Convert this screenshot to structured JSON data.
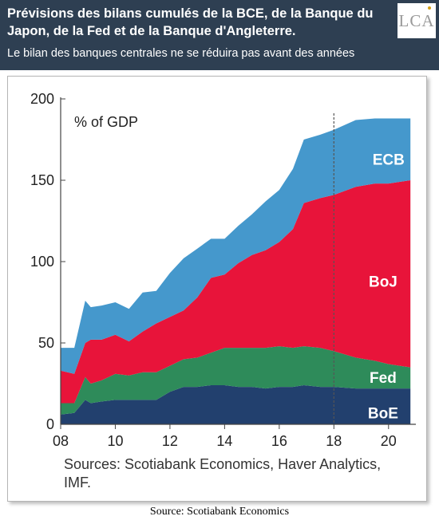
{
  "header": {
    "title": "Prévisions des bilans cumulés de la BCE, de la Banque du Japon, de la Fed et de la Banque d'Angleterre.",
    "subtitle": "Le bilan des banques centrales ne se réduira pas avant des années",
    "logo": "LCA"
  },
  "footer": {
    "source": "Source: Scotiabank Economics"
  },
  "colors": {
    "boe": "#22406e",
    "fed": "#2e8b5a",
    "boj": "#e8143a",
    "ecb": "#4598cc",
    "header_bg": "#2e3f52"
  },
  "chart_data": {
    "type": "area",
    "stacked": true,
    "unit_label": "% of GDP",
    "source_note": "Sources: Scotiabank Economics, Haver Analytics, IMF.",
    "x": [
      2008.0,
      2008.5,
      2008.9,
      2009.1,
      2009.5,
      2010.0,
      2010.5,
      2011.0,
      2011.5,
      2012.0,
      2012.5,
      2013.0,
      2013.5,
      2014.0,
      2014.5,
      2015.0,
      2015.5,
      2016.0,
      2016.5,
      2016.9,
      2017.5,
      2018.0,
      2018.8,
      2019.5,
      2020.0,
      2020.8
    ],
    "xlim": [
      2008,
      2021
    ],
    "ylim": [
      0,
      200
    ],
    "xticks": [
      {
        "v": 2008,
        "label": "08"
      },
      {
        "v": 2010,
        "label": "10"
      },
      {
        "v": 2012,
        "label": "12"
      },
      {
        "v": 2014,
        "label": "14"
      },
      {
        "v": 2016,
        "label": "16"
      },
      {
        "v": 2018,
        "label": "18"
      },
      {
        "v": 2020,
        "label": "20"
      }
    ],
    "yticks": [
      0,
      50,
      100,
      150,
      200
    ],
    "forecast_start": 2018,
    "series": [
      {
        "name": "BoE",
        "key": "boe",
        "values": [
          6,
          7,
          15,
          13,
          14,
          15,
          15,
          15,
          15,
          20,
          23,
          23,
          24,
          24,
          23,
          23,
          22,
          23,
          23,
          24,
          23,
          23,
          22,
          22,
          22,
          22
        ]
      },
      {
        "name": "Fed",
        "key": "fed",
        "values": [
          7,
          6,
          14,
          12,
          13,
          16,
          15,
          17,
          17,
          16,
          17,
          18,
          20,
          23,
          24,
          24,
          25,
          25,
          24,
          24,
          24,
          22,
          19,
          17,
          15,
          13
        ]
      },
      {
        "name": "BoJ",
        "key": "boj",
        "values": [
          20,
          18,
          21,
          27,
          25,
          24,
          21,
          25,
          30,
          30,
          30,
          37,
          46,
          45,
          52,
          57,
          60,
          64,
          73,
          88,
          92,
          96,
          105,
          109,
          111,
          115
        ]
      },
      {
        "name": "ECB",
        "key": "ecb",
        "values": [
          14,
          16,
          26,
          20,
          21,
          20,
          20,
          24,
          20,
          27,
          32,
          30,
          24,
          22,
          23,
          25,
          30,
          32,
          37,
          39,
          39,
          40,
          41,
          40,
          40,
          38
        ]
      }
    ],
    "labels": [
      {
        "name": "ECB",
        "x": 2020.0,
        "y": 163
      },
      {
        "name": "BoJ",
        "x": 2019.8,
        "y": 88
      },
      {
        "name": "Fed",
        "x": 2019.8,
        "y": 29
      },
      {
        "name": "BoE",
        "x": 2019.8,
        "y": 7
      }
    ]
  }
}
